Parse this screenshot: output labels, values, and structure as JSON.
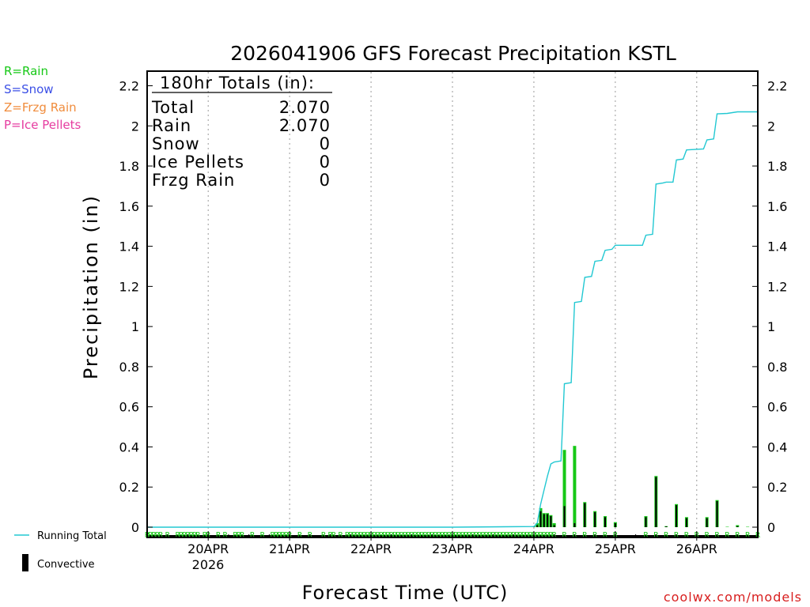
{
  "chart_data": {
    "type": "bar",
    "title": "2026041906 GFS Forecast Precipitation KSTL",
    "xlabel": "Forecast Time (UTC)",
    "ylabel": "Precipitation (in)",
    "ylim": [
      0,
      2.2
    ],
    "xlim_hours": [
      0,
      180
    ],
    "y_ticks": [
      {
        "v": 0,
        "label": "0"
      },
      {
        "v": 0.2,
        "label": "0.2"
      },
      {
        "v": 0.4,
        "label": "0.4"
      },
      {
        "v": 0.6,
        "label": "0.6"
      },
      {
        "v": 0.8,
        "label": "0.8"
      },
      {
        "v": 1.0,
        "label": "1"
      },
      {
        "v": 1.2,
        "label": "1.2"
      },
      {
        "v": 1.4,
        "label": "1.4"
      },
      {
        "v": 1.6,
        "label": "1.6"
      },
      {
        "v": 1.8,
        "label": "1.8"
      },
      {
        "v": 2.0,
        "label": "2"
      },
      {
        "v": 2.2,
        "label": "2.2"
      }
    ],
    "x_days": [
      {
        "h": 18,
        "label": "20APR"
      },
      {
        "h": 42,
        "label": "21APR"
      },
      {
        "h": 66,
        "label": "22APR"
      },
      {
        "h": 90,
        "label": "23APR"
      },
      {
        "h": 114,
        "label": "24APR"
      },
      {
        "h": 138,
        "label": "25APR"
      },
      {
        "h": 162,
        "label": "26APR"
      }
    ],
    "year_label": "2026",
    "legend_types": [
      {
        "text": "R=Rain",
        "color": "#16c816"
      },
      {
        "text": "S=Snow",
        "color": "#3c50e6"
      },
      {
        "text": "Z=Frzg Rain",
        "color": "#f08c3c"
      },
      {
        "text": "P=Ice Pellets",
        "color": "#e63ca0"
      }
    ],
    "legend_series": {
      "running_total": "Running Total",
      "convective": "Convective",
      "running_total_color": "#22c8d2",
      "rain_color": "#16c816",
      "convective_color": "#000000"
    },
    "totals_box": {
      "header": "180hr Totals (in):",
      "rows": [
        {
          "label": "Total",
          "value": "2.070"
        },
        {
          "label": "Rain",
          "value": "2.070"
        },
        {
          "label": "Snow",
          "value": "0"
        },
        {
          "label": "Ice Pellets",
          "value": "0"
        },
        {
          "label": "Frzg Rain",
          "value": "0"
        }
      ]
    },
    "bars": [
      {
        "h": 114,
        "total": 0.003,
        "conv": 0.002
      },
      {
        "h": 115,
        "total": 0.02,
        "conv": 0.01
      },
      {
        "h": 116,
        "total": 0.095,
        "conv": 0.08
      },
      {
        "h": 117,
        "total": 0.07,
        "conv": 0.065
      },
      {
        "h": 118,
        "total": 0.07,
        "conv": 0.065
      },
      {
        "h": 119,
        "total": 0.06,
        "conv": 0.055
      },
      {
        "h": 120,
        "total": 0.02,
        "conv": 0.01
      },
      {
        "h": 123,
        "total": 0.385,
        "conv": 0.105
      },
      {
        "h": 126,
        "total": 0.405,
        "conv": 0.02
      },
      {
        "h": 129,
        "total": 0.125,
        "conv": 0.12
      },
      {
        "h": 132,
        "total": 0.08,
        "conv": 0.075
      },
      {
        "h": 135,
        "total": 0.055,
        "conv": 0.05
      },
      {
        "h": 138,
        "total": 0.025,
        "conv": 0.02
      },
      {
        "h": 147,
        "total": 0.055,
        "conv": 0.05
      },
      {
        "h": 150,
        "total": 0.255,
        "conv": 0.25
      },
      {
        "h": 153,
        "total": 0.005,
        "conv": 0.004
      },
      {
        "h": 156,
        "total": 0.115,
        "conv": 0.11
      },
      {
        "h": 159,
        "total": 0.05,
        "conv": 0.045
      },
      {
        "h": 165,
        "total": 0.05,
        "conv": 0.045
      },
      {
        "h": 168,
        "total": 0.135,
        "conv": 0.13
      },
      {
        "h": 171,
        "total": 0.002,
        "conv": 0.0
      },
      {
        "h": 174,
        "total": 0.01,
        "conv": 0.005
      },
      {
        "h": 177,
        "total": 0.002,
        "conv": 0.0
      }
    ],
    "running_total_line": [
      {
        "h": 0,
        "v": 0
      },
      {
        "h": 90,
        "v": 0
      },
      {
        "h": 114,
        "v": 0.003
      },
      {
        "h": 115,
        "v": 0.02
      },
      {
        "h": 116,
        "v": 0.115
      },
      {
        "h": 117,
        "v": 0.185
      },
      {
        "h": 118,
        "v": 0.255
      },
      {
        "h": 119,
        "v": 0.315
      },
      {
        "h": 120,
        "v": 0.325
      },
      {
        "h": 122,
        "v": 0.33
      },
      {
        "h": 123,
        "v": 0.715
      },
      {
        "h": 125,
        "v": 0.72
      },
      {
        "h": 126,
        "v": 1.12
      },
      {
        "h": 128,
        "v": 1.125
      },
      {
        "h": 129,
        "v": 1.245
      },
      {
        "h": 131,
        "v": 1.25
      },
      {
        "h": 132,
        "v": 1.325
      },
      {
        "h": 134,
        "v": 1.33
      },
      {
        "h": 135,
        "v": 1.38
      },
      {
        "h": 137,
        "v": 1.385
      },
      {
        "h": 138,
        "v": 1.405
      },
      {
        "h": 146,
        "v": 1.405
      },
      {
        "h": 147,
        "v": 1.455
      },
      {
        "h": 149,
        "v": 1.46
      },
      {
        "h": 150,
        "v": 1.71
      },
      {
        "h": 152,
        "v": 1.715
      },
      {
        "h": 153,
        "v": 1.72
      },
      {
        "h": 155,
        "v": 1.72
      },
      {
        "h": 156,
        "v": 1.83
      },
      {
        "h": 158,
        "v": 1.835
      },
      {
        "h": 159,
        "v": 1.88
      },
      {
        "h": 164,
        "v": 1.885
      },
      {
        "h": 165,
        "v": 1.93
      },
      {
        "h": 167,
        "v": 1.935
      },
      {
        "h": 168,
        "v": 2.06
      },
      {
        "h": 171,
        "v": 2.062
      },
      {
        "h": 174,
        "v": 2.07
      },
      {
        "h": 180,
        "v": 2.07
      }
    ],
    "type_marker_char": "R",
    "type_marker_hours": [
      0,
      1,
      2,
      3,
      4,
      6,
      9,
      10,
      11,
      12,
      13,
      14,
      15,
      17,
      18,
      21,
      23,
      26,
      27,
      28,
      31,
      34,
      37,
      38,
      39,
      40,
      41,
      42,
      45,
      48,
      52,
      54,
      55,
      57,
      59,
      60,
      61,
      62,
      63,
      64,
      65,
      66,
      67,
      68,
      69,
      70,
      71,
      72,
      73,
      74,
      75,
      76,
      77,
      78,
      79,
      80,
      81,
      82,
      83,
      84,
      85,
      86,
      87,
      88,
      89,
      90,
      91,
      92,
      93,
      94,
      95,
      96,
      97,
      98,
      99,
      100,
      101,
      102,
      103,
      104,
      105,
      106,
      107,
      108,
      109,
      110,
      111,
      112,
      113,
      114,
      115,
      116,
      117,
      118,
      119,
      120,
      123,
      126,
      129,
      132,
      135,
      138,
      147,
      150,
      153,
      156,
      159,
      162,
      165,
      168,
      171,
      174,
      177,
      180
    ],
    "credit": "coolwx.com/models"
  }
}
